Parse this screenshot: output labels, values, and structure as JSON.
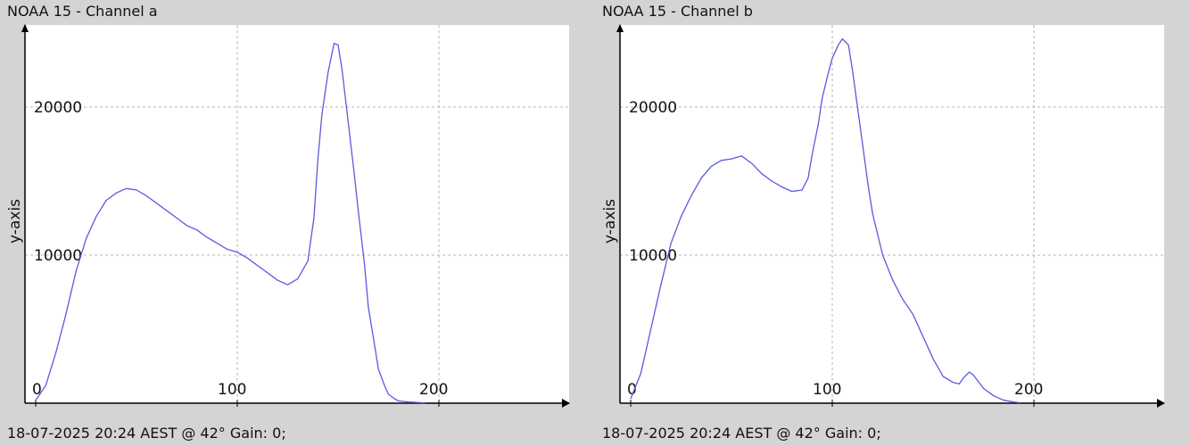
{
  "colors": {
    "background": "#d4d4d4",
    "plot_area": "#ffffff",
    "series_line": "#5a5adf",
    "grid": "#b4b4b4",
    "axis": "#000000"
  },
  "chart_data": [
    {
      "type": "line",
      "title": "NOAA 15 - Channel a",
      "footer": "18-07-2025 20:24 AEST @ 42° Gain: 0;",
      "xlabel": "",
      "ylabel": "y-axis",
      "xlim": [
        0,
        250
      ],
      "ylim": [
        0,
        25000
      ],
      "xticks": [
        0,
        100,
        200
      ],
      "yticks": [
        10000,
        20000
      ],
      "xtick_labels": [
        "0",
        "100",
        "200"
      ],
      "ytick_labels": [
        "10000",
        "20000"
      ],
      "grid": true,
      "series": [
        {
          "x": [
            0,
            5,
            10,
            15,
            20,
            25,
            30,
            35,
            40,
            45,
            50,
            55,
            60,
            65,
            70,
            75,
            80,
            85,
            90,
            95,
            100,
            105,
            110,
            115,
            120,
            125,
            130,
            135,
            138,
            140,
            142,
            145,
            148,
            150,
            152,
            155,
            158,
            160,
            163,
            165,
            168,
            170,
            173,
            175,
            178,
            180,
            185,
            190,
            193
          ],
          "y": [
            200,
            1200,
            3400,
            6000,
            8900,
            11100,
            12600,
            13700,
            14200,
            14500,
            14400,
            14000,
            13500,
            13000,
            12500,
            12000,
            11700,
            11200,
            10800,
            10400,
            10200,
            9800,
            9300,
            8800,
            8300,
            8000,
            8400,
            9600,
            12500,
            16500,
            19500,
            22300,
            24300,
            24200,
            22500,
            19000,
            15500,
            13000,
            9500,
            6500,
            4000,
            2300,
            1200,
            600,
            300,
            150,
            80,
            40,
            20
          ]
        }
      ]
    },
    {
      "type": "line",
      "title": "NOAA 15 - Channel b",
      "footer": "18-07-2025 20:24 AEST @ 42° Gain: 0;",
      "xlabel": "",
      "ylabel": "y-axis",
      "xlim": [
        0,
        250
      ],
      "ylim": [
        0,
        25000
      ],
      "xticks": [
        0,
        100,
        200
      ],
      "yticks": [
        10000,
        20000
      ],
      "xtick_labels": [
        "0",
        "100",
        "200"
      ],
      "ytick_labels": [
        "10000",
        "20000"
      ],
      "grid": true,
      "series": [
        {
          "x": [
            0,
            5,
            10,
            15,
            20,
            25,
            30,
            35,
            40,
            45,
            50,
            55,
            60,
            65,
            70,
            75,
            80,
            85,
            88,
            90,
            93,
            95,
            98,
            100,
            103,
            105,
            108,
            110,
            113,
            115,
            118,
            120,
            125,
            130,
            135,
            140,
            145,
            150,
            155,
            160,
            163,
            165,
            168,
            170,
            175,
            180,
            185,
            190,
            193
          ],
          "y": [
            300,
            2000,
            5000,
            8000,
            10800,
            12600,
            14000,
            15200,
            16000,
            16400,
            16500,
            16700,
            16200,
            15500,
            15000,
            14600,
            14300,
            14400,
            15200,
            16800,
            18800,
            20600,
            22300,
            23300,
            24200,
            24600,
            24200,
            22500,
            19500,
            17500,
            14500,
            12800,
            10000,
            8300,
            7000,
            6000,
            4500,
            3000,
            1800,
            1400,
            1300,
            1700,
            2100,
            1900,
            1000,
            500,
            200,
            80,
            30
          ]
        }
      ]
    }
  ]
}
